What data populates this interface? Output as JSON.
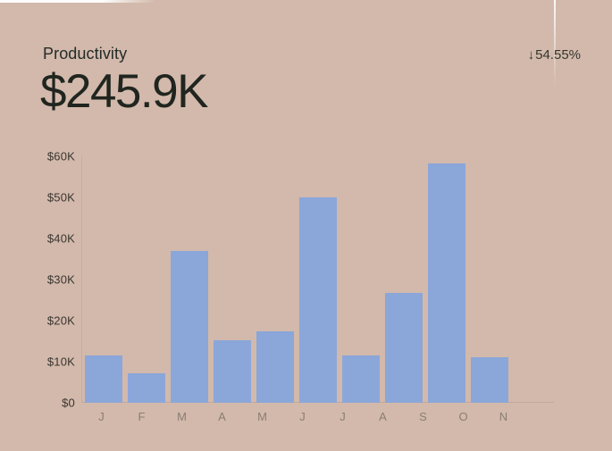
{
  "card": {
    "title": "Productivity",
    "value": "$245.9K",
    "change_arrow": "↓",
    "change_value": "54.55%"
  },
  "chart_data": {
    "type": "bar",
    "title": "Productivity",
    "categories": [
      "J",
      "F",
      "M",
      "A",
      "M",
      "J",
      "J",
      "A",
      "S",
      "O",
      "N"
    ],
    "values": [
      11.6,
      7.1,
      37.0,
      15.3,
      17.3,
      50.0,
      11.6,
      26.7,
      58.3,
      11.0,
      0
    ],
    "values_unit": "K",
    "total_label": "$245.9K",
    "y_tick_labels": [
      "$60K",
      "$50K",
      "$40K",
      "$30K",
      "$20K",
      "$10K",
      "$0"
    ],
    "ylim": [
      0,
      60
    ],
    "xlabel": "",
    "ylabel": "",
    "grid": false,
    "legend": false,
    "bar_color": "#8ba6d9",
    "background_color": "#d2b9ab"
  },
  "colors": {
    "background": "#d2b9ab",
    "bar": "#8ba6d9",
    "title_text": "#242b28",
    "value_text": "#20251f",
    "change_text": "#35362f",
    "y_tick_text": "#3b3530",
    "x_tick_text": "#8b7d74",
    "axis_line": "#c3a89a"
  }
}
